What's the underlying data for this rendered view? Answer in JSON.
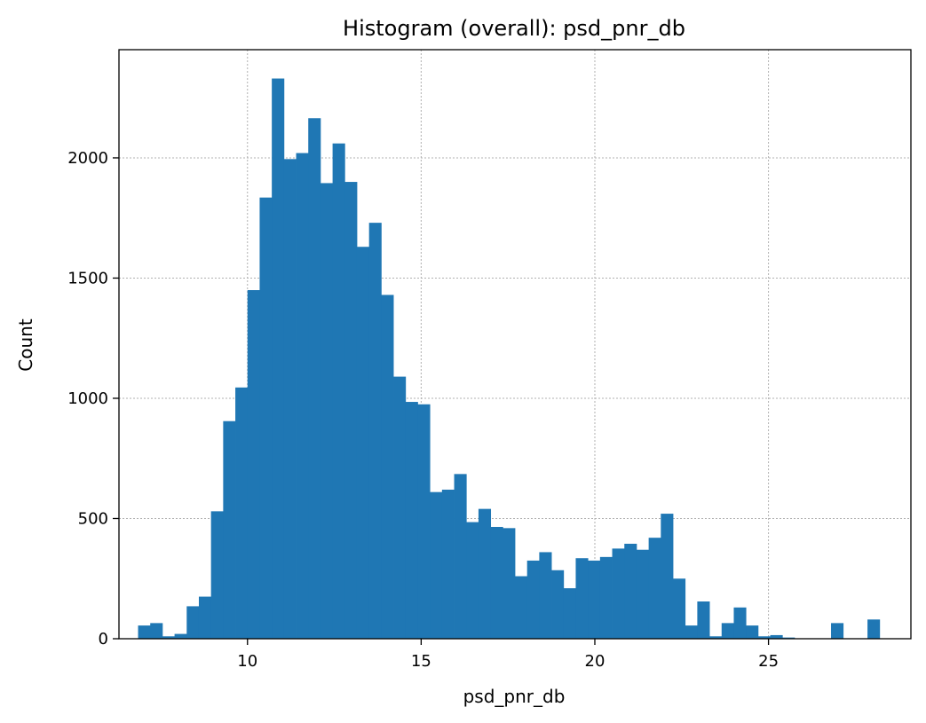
{
  "chart_data": {
    "type": "bar",
    "title": "Histogram (overall): psd_pnr_db",
    "xlabel": "psd_pnr_db",
    "ylabel": "Count",
    "xlim": [
      6.3,
      29.1
    ],
    "ylim": [
      0,
      2450
    ],
    "xticks": [
      10,
      15,
      20,
      25
    ],
    "yticks": [
      0,
      500,
      1000,
      1500,
      2000
    ],
    "grid": true,
    "color": "#1f77b4",
    "bin_start": 6.85,
    "bin_width": 0.35,
    "counts": [
      55,
      65,
      10,
      20,
      135,
      175,
      530,
      905,
      1045,
      1450,
      1835,
      2330,
      1995,
      2020,
      2165,
      1895,
      2060,
      1900,
      1630,
      1730,
      1430,
      1090,
      985,
      975,
      610,
      620,
      685,
      485,
      540,
      465,
      460,
      260,
      325,
      360,
      285,
      210,
      335,
      325,
      340,
      375,
      395,
      370,
      420,
      520,
      250,
      55,
      155,
      10,
      65,
      130,
      55,
      10,
      15,
      5,
      0,
      0,
      0,
      65,
      0,
      0,
      80
    ]
  }
}
